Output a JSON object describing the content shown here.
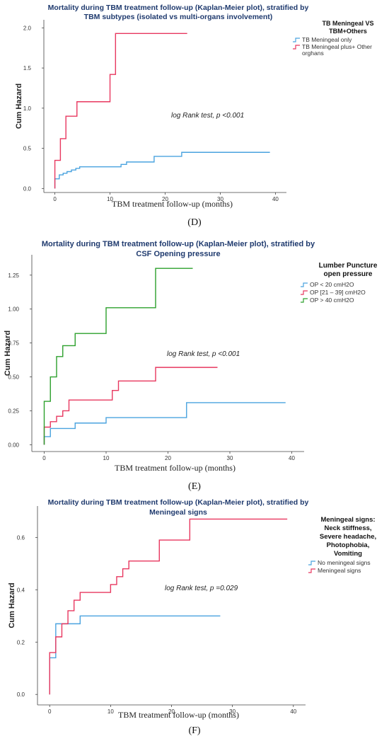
{
  "chart_data": [
    {
      "type": "line",
      "panel": "D",
      "title_lines": [
        "Mortality during TBM treatment follow-up (Kaplan-Meier plot), stratified by",
        "TBM subtypes (isolated vs multi-organs involvement)"
      ],
      "xlabel": "TBM treatment follow-up (months)",
      "ylabel": "Cum Hazard",
      "xlim": [
        -2,
        42
      ],
      "ylim": [
        -0.05,
        2.1
      ],
      "xticks": [
        0,
        10,
        20,
        30,
        40
      ],
      "yticks": [
        "0.0",
        "0.5",
        "1.0",
        "1.5",
        "2.0"
      ],
      "annotation": "log Rank test, p <0.001",
      "legend_title_lines": [
        "TB Meningeal VS",
        "TBM+Others"
      ],
      "legend_labels": [
        [
          "TB Meningeal only"
        ],
        [
          "TB Meningeal plus+ Other",
          "orghans"
        ]
      ],
      "legend_position": "right",
      "caption": "(D)",
      "series": [
        {
          "color": "#4aa3df",
          "x": [
            0,
            0,
            0.8,
            1.5,
            2.2,
            3,
            3.8,
            4.5,
            12,
            13,
            18,
            23,
            39
          ],
          "y": [
            0,
            0.12,
            0.17,
            0.19,
            0.21,
            0.23,
            0.25,
            0.27,
            0.3,
            0.33,
            0.4,
            0.45,
            0.45
          ]
        },
        {
          "color": "#e8375f",
          "x": [
            0,
            0,
            1,
            2,
            4,
            10,
            11,
            24
          ],
          "y": [
            0,
            0.35,
            0.62,
            0.9,
            1.08,
            1.42,
            1.93,
            1.93
          ]
        }
      ]
    },
    {
      "type": "line",
      "panel": "E",
      "title_lines": [
        "Mortality during TBM treatment follow-up (Kaplan-Meier plot), stratified by",
        "CSF Opening pressure"
      ],
      "xlabel": "TBM treatment follow-up (months)",
      "ylabel": "Cum Hazard",
      "xlim": [
        -2,
        42
      ],
      "ylim": [
        -0.05,
        1.4
      ],
      "xticks": [
        0,
        10,
        20,
        30,
        40
      ],
      "yticks": [
        "0.00",
        "0.25",
        "0.50",
        "0.75",
        "1.00",
        "1.25"
      ],
      "annotation": "log Rank test, p <0.001",
      "legend_title_lines": [
        "Lumber Puncture",
        "open pressure"
      ],
      "legend_labels": [
        [
          "OP < 20 cmH2O"
        ],
        [
          "OP [21 – 39] cmH2O"
        ],
        [
          "OP > 40 cmH2O"
        ]
      ],
      "legend_position": "right",
      "caption": "(E)",
      "series": [
        {
          "color": "#4aa3df",
          "x": [
            0,
            0,
            1,
            5,
            10,
            23,
            39
          ],
          "y": [
            0,
            0.06,
            0.12,
            0.16,
            0.2,
            0.31,
            0.31
          ]
        },
        {
          "color": "#e8375f",
          "x": [
            0,
            0,
            1,
            2,
            3,
            4,
            11,
            12,
            18,
            28
          ],
          "y": [
            0,
            0.13,
            0.17,
            0.21,
            0.25,
            0.33,
            0.4,
            0.47,
            0.57,
            0.57
          ]
        },
        {
          "color": "#2ca02c",
          "x": [
            0,
            0,
            1,
            2,
            3,
            5,
            10,
            18,
            24
          ],
          "y": [
            0,
            0.32,
            0.5,
            0.65,
            0.73,
            0.82,
            1.01,
            1.3,
            1.3
          ]
        }
      ]
    },
    {
      "type": "line",
      "panel": "F",
      "title_lines": [
        "Mortality during TBM treatment follow-up (Kaplan-Meier plot), stratified by",
        "Meningeal signs"
      ],
      "xlabel": "TBM treatment follow-up (months)",
      "ylabel": "Cum Hazard",
      "xlim": [
        -2,
        42
      ],
      "ylim": [
        -0.04,
        0.72
      ],
      "xticks": [
        0,
        10,
        20,
        30,
        40
      ],
      "yticks": [
        "0.0",
        "0.2",
        "0.4",
        "0.6"
      ],
      "annotation": "log Rank test, p =0.029",
      "legend_title_lines": [
        "Meningeal signs:",
        "Neck stiffness,",
        "Severe headache,",
        "Photophobia,",
        "Vomiting"
      ],
      "legend_labels": [
        [
          "No meningeal signs"
        ],
        [
          "Meningeal signs"
        ]
      ],
      "legend_position": "right",
      "caption": "(F)",
      "series": [
        {
          "color": "#4aa3df",
          "x": [
            0,
            0,
            1,
            5,
            28
          ],
          "y": [
            0,
            0.14,
            0.27,
            0.3,
            0.3
          ]
        },
        {
          "color": "#e8375f",
          "x": [
            0,
            0,
            1,
            2,
            3,
            4,
            5,
            10,
            11,
            12,
            13,
            18,
            23,
            39
          ],
          "y": [
            0,
            0.16,
            0.22,
            0.27,
            0.32,
            0.36,
            0.39,
            0.42,
            0.45,
            0.48,
            0.51,
            0.59,
            0.67,
            0.67
          ]
        }
      ]
    }
  ]
}
